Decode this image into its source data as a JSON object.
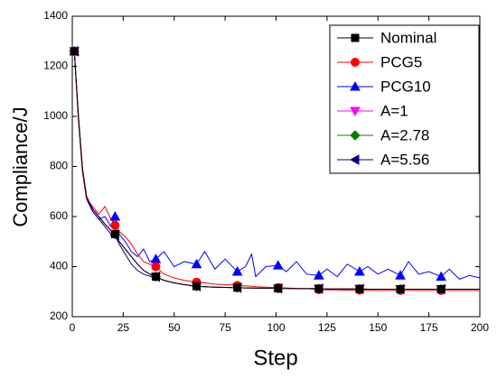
{
  "chart_data": {
    "type": "line",
    "xlabel": "Step",
    "ylabel": "Compliance/J",
    "x": [
      1,
      3,
      5,
      7,
      10,
      13,
      16,
      19,
      21,
      23,
      26,
      29,
      32,
      35,
      38,
      41,
      45,
      50,
      55,
      61,
      65,
      70,
      75,
      81,
      85,
      88,
      90,
      95,
      101,
      105,
      110,
      115,
      121,
      125,
      130,
      135,
      141,
      145,
      150,
      155,
      161,
      165,
      170,
      175,
      181,
      185,
      190,
      195,
      200
    ],
    "series": [
      {
        "name": "Nominal",
        "color": "#000000",
        "marker": "square",
        "values": [
          1260,
          1000,
          790,
          680,
          630,
          600,
          570,
          545,
          530,
          500,
          470,
          440,
          410,
          385,
          370,
          360,
          345,
          335,
          328,
          322,
          320,
          318,
          317,
          316,
          315,
          315,
          314,
          314,
          313,
          313,
          312,
          312,
          312,
          311,
          311,
          311,
          311,
          310,
          310,
          310,
          310,
          310,
          310,
          310,
          310,
          310,
          310,
          310,
          310
        ]
      },
      {
        "name": "PCG5",
        "color": "#ff0000",
        "marker": "circle",
        "values": [
          1260,
          990,
          780,
          670,
          640,
          610,
          640,
          590,
          565,
          540,
          520,
          490,
          450,
          420,
          410,
          400,
          370,
          355,
          345,
          338,
          335,
          330,
          328,
          325,
          323,
          322,
          320,
          318,
          316,
          315,
          313,
          312,
          308,
          307,
          307,
          306,
          306,
          306,
          305,
          305,
          305,
          305,
          305,
          305,
          305,
          305,
          305,
          305,
          305
        ]
      },
      {
        "name": "PCG10",
        "color": "#0000ff",
        "marker": "triangle-up",
        "values": [
          1260,
          1000,
          790,
          670,
          620,
          590,
          600,
          560,
          600,
          530,
          500,
          460,
          440,
          470,
          420,
          430,
          460,
          400,
          420,
          410,
          460,
          390,
          430,
          380,
          400,
          450,
          360,
          400,
          405,
          380,
          420,
          370,
          365,
          390,
          360,
          410,
          380,
          400,
          370,
          390,
          365,
          420,
          370,
          380,
          360,
          390,
          350,
          365,
          355
        ]
      },
      {
        "name": "A=1",
        "color": "#ff00ff",
        "marker": "triangle-down",
        "values": [
          1260,
          1000,
          790,
          680,
          630,
          600,
          570,
          545,
          530,
          500,
          470,
          440,
          410,
          385,
          370,
          360,
          345,
          335,
          328,
          322,
          320,
          318,
          317,
          316,
          315,
          315,
          314,
          314,
          313,
          313,
          312,
          312,
          312,
          311,
          311,
          311,
          311,
          310,
          310,
          310,
          310,
          310,
          310,
          310,
          310,
          310,
          310,
          310,
          310
        ]
      },
      {
        "name": "A=2.78",
        "color": "#008000",
        "marker": "diamond",
        "values": [
          1260,
          1000,
          790,
          680,
          630,
          600,
          570,
          545,
          530,
          500,
          470,
          440,
          410,
          385,
          370,
          360,
          345,
          335,
          328,
          322,
          320,
          318,
          317,
          316,
          315,
          315,
          314,
          314,
          313,
          313,
          312,
          312,
          312,
          311,
          311,
          311,
          311,
          310,
          310,
          310,
          310,
          310,
          310,
          310,
          310,
          310,
          310,
          310,
          310
        ]
      },
      {
        "name": "A=5.56",
        "color": "#000080",
        "marker": "triangle-left",
        "values": [
          1260,
          990,
          780,
          670,
          620,
          590,
          560,
          530,
          525,
          490,
          450,
          410,
          385,
          370,
          362,
          360,
          345,
          335,
          328,
          322,
          320,
          318,
          317,
          316,
          315,
          315,
          314,
          314,
          313,
          313,
          312,
          312,
          312,
          311,
          311,
          311,
          311,
          310,
          310,
          310,
          310,
          310,
          310,
          310,
          310,
          310,
          310,
          310,
          310
        ]
      }
    ],
    "xlim": [
      0,
      200
    ],
    "xticks": [
      0,
      25,
      50,
      75,
      100,
      125,
      150,
      175,
      200
    ],
    "ylim": [
      200,
      1400
    ],
    "yticks": [
      200,
      400,
      600,
      800,
      1000,
      1200,
      1400
    ],
    "legend": "upper right"
  }
}
